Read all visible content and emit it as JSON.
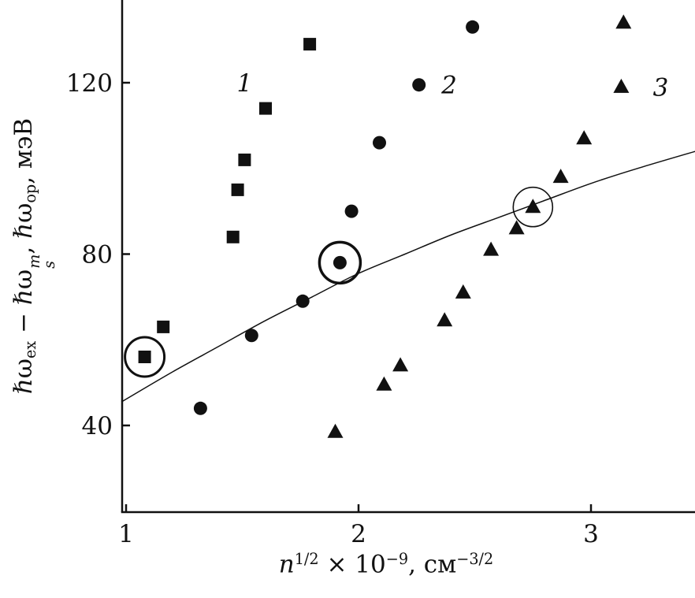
{
  "figure": {
    "background": "#ffffff",
    "ink_color": "#111111"
  },
  "chart_data": {
    "type": "scatter",
    "title": "",
    "xlabel_text": "n^(1/2) × 10^(−9), см^(−3/2)",
    "ylabel_text": "ℏω_ex − ℏω_s^m, ℏω_op, мэВ",
    "xlabel_parts": [
      {
        "type": "italic",
        "t": "n"
      },
      {
        "type": "sup",
        "t": "1/2"
      },
      {
        "type": "text",
        "t": " × 10"
      },
      {
        "type": "sup",
        "t": "−9"
      },
      {
        "type": "text",
        "t": ", см"
      },
      {
        "type": "sup",
        "t": "−3/2"
      }
    ],
    "ylabel_parts": [
      {
        "type": "text",
        "t": "ℏω"
      },
      {
        "type": "sub",
        "t": "ex"
      },
      {
        "type": "text",
        "t": " − ℏω"
      },
      {
        "type": "subsup",
        "sup": "m",
        "sub": "s"
      },
      {
        "type": "text",
        "t": ", ℏω"
      },
      {
        "type": "sub",
        "t": "op"
      },
      {
        "type": "text",
        "t": ", мэВ"
      }
    ],
    "xlim": [
      0.98,
      3.45
    ],
    "ylim": [
      20,
      139
    ],
    "grid": false,
    "legend_position": "inline-labels",
    "xticks": [
      {
        "value": 1,
        "label": "1"
      },
      {
        "value": 2,
        "label": "2"
      },
      {
        "value": 3,
        "label": "3"
      }
    ],
    "yticks": [
      {
        "value": 40,
        "label": "40"
      },
      {
        "value": 80,
        "label": "80"
      },
      {
        "value": 120,
        "label": "120"
      }
    ],
    "series": [
      {
        "name": "1",
        "marker": "square",
        "label_x": 1.51,
        "label_y": 120,
        "points": [
          [
            1.08,
            56
          ],
          [
            1.16,
            63
          ],
          [
            1.46,
            84
          ],
          [
            1.48,
            95
          ],
          [
            1.51,
            102
          ],
          [
            1.6,
            114
          ],
          [
            1.79,
            129
          ]
        ]
      },
      {
        "name": "2",
        "marker": "circle",
        "label_x": 2.39,
        "label_y": 119.5,
        "points": [
          [
            1.32,
            44
          ],
          [
            1.54,
            61
          ],
          [
            1.76,
            69
          ],
          [
            1.92,
            78
          ],
          [
            1.97,
            90
          ],
          [
            2.09,
            106
          ],
          [
            2.26,
            119.5
          ],
          [
            2.49,
            133
          ]
        ]
      },
      {
        "name": "3",
        "marker": "triangle",
        "label_x": 3.3,
        "label_y": 119,
        "points": [
          [
            1.9,
            38.5
          ],
          [
            2.11,
            49.5
          ],
          [
            2.18,
            54
          ],
          [
            2.37,
            64.5
          ],
          [
            2.45,
            71
          ],
          [
            2.57,
            81
          ],
          [
            2.68,
            86
          ],
          [
            2.75,
            91
          ],
          [
            2.87,
            98
          ],
          [
            2.97,
            107
          ],
          [
            3.13,
            119
          ],
          [
            3.14,
            134
          ]
        ]
      }
    ],
    "circled_points": [
      {
        "x": 1.08,
        "y": 56,
        "series": "1",
        "r": 25,
        "stroke_width": 3
      },
      {
        "x": 1.92,
        "y": 78,
        "series": "2",
        "r": 26,
        "stroke_width": 3.5
      },
      {
        "x": 2.75,
        "y": 91,
        "series": "3",
        "r": 25,
        "stroke_width": 1.6
      }
    ],
    "fit_curve": {
      "stroke_width": 1.5,
      "points": [
        [
          0.98,
          45.5
        ],
        [
          1.2,
          52.5
        ],
        [
          1.4,
          58.5
        ],
        [
          1.6,
          64.5
        ],
        [
          1.8,
          70
        ],
        [
          2.0,
          75.5
        ],
        [
          2.2,
          80
        ],
        [
          2.4,
          84.5
        ],
        [
          2.6,
          88.5
        ],
        [
          2.8,
          92.5
        ],
        [
          3.0,
          96.5
        ],
        [
          3.2,
          100
        ],
        [
          3.45,
          104
        ]
      ]
    }
  }
}
